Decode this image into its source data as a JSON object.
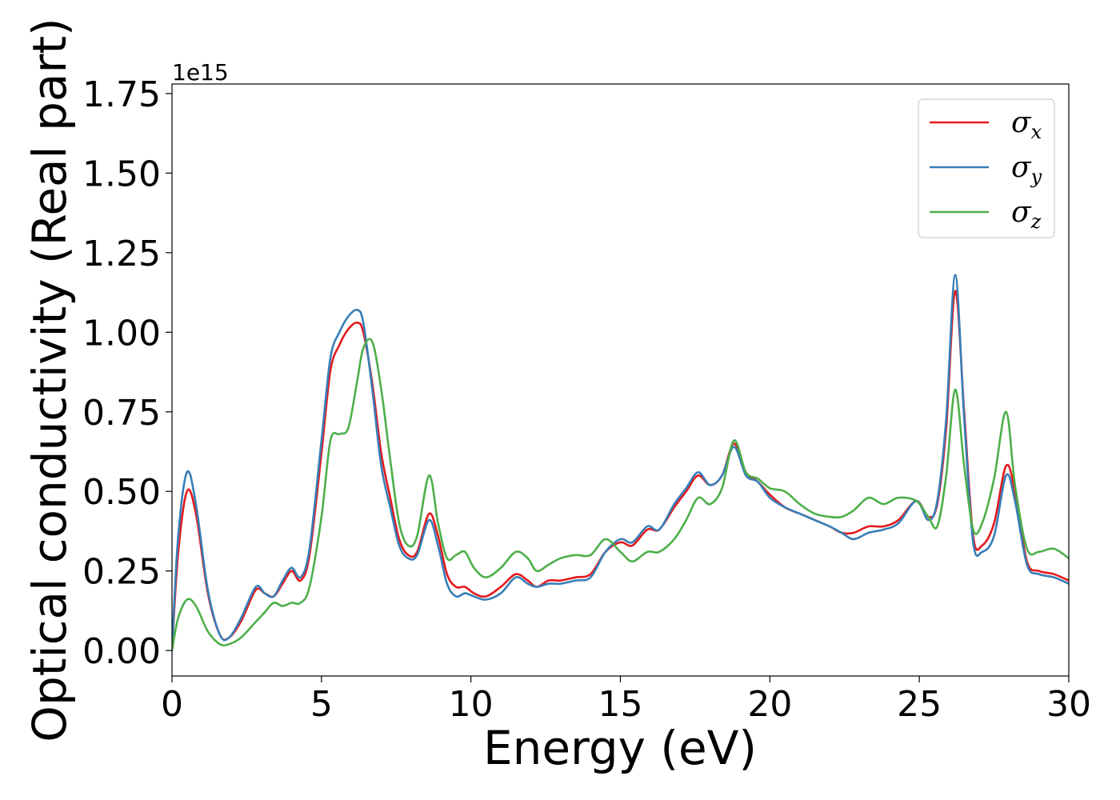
{
  "chart_data": {
    "type": "line",
    "xlabel": "Energy (eV)",
    "ylabel": "Optical conductivity (Real part)",
    "y_offset_label": "1e15",
    "xlim": [
      0,
      30
    ],
    "ylim": [
      -0.08,
      1.78
    ],
    "xticks": [
      0,
      5,
      10,
      15,
      20,
      25,
      30
    ],
    "xtick_labels": [
      "0",
      "5",
      "10",
      "15",
      "20",
      "25",
      "30"
    ],
    "yticks": [
      0,
      0.25,
      0.5,
      0.75,
      1.0,
      1.25,
      1.5,
      1.75
    ],
    "ytick_labels": [
      "0.00",
      "0.25",
      "0.50",
      "0.75",
      "1.00",
      "1.25",
      "1.50",
      "1.75"
    ],
    "grid": false,
    "legend_position": "top-right",
    "series": [
      {
        "name": "σx",
        "symbol": "σ",
        "subscript": "x",
        "color": "#e41a1c",
        "x": [
          0,
          0.2,
          0.5,
          0.8,
          1.2,
          1.6,
          1.9,
          2.3,
          2.8,
          3.1,
          3.4,
          3.7,
          4.0,
          4.3,
          4.6,
          5.0,
          5.3,
          5.6,
          5.9,
          6.2,
          6.4,
          6.7,
          7.0,
          7.3,
          7.6,
          7.9,
          8.2,
          8.6,
          8.9,
          9.2,
          9.5,
          9.8,
          10.1,
          10.5,
          11.0,
          11.5,
          11.9,
          12.2,
          12.6,
          13.0,
          13.5,
          14.0,
          14.5,
          15.0,
          15.4,
          15.9,
          16.3,
          16.8,
          17.2,
          17.6,
          18.0,
          18.4,
          18.8,
          19.2,
          19.6,
          20.0,
          20.5,
          21.0,
          21.5,
          22.0,
          22.4,
          22.8,
          23.3,
          23.8,
          24.3,
          24.9,
          25.3,
          25.6,
          25.9,
          26.2,
          26.5,
          26.8,
          27.1,
          27.5,
          27.9,
          28.2,
          28.6,
          29.0,
          29.5,
          30.0
        ],
        "values": [
          0.0,
          0.3,
          0.5,
          0.43,
          0.18,
          0.05,
          0.04,
          0.09,
          0.19,
          0.18,
          0.17,
          0.21,
          0.25,
          0.22,
          0.3,
          0.62,
          0.88,
          0.96,
          1.01,
          1.03,
          1.0,
          0.84,
          0.62,
          0.48,
          0.35,
          0.3,
          0.31,
          0.43,
          0.36,
          0.24,
          0.2,
          0.2,
          0.18,
          0.17,
          0.2,
          0.24,
          0.22,
          0.2,
          0.22,
          0.22,
          0.23,
          0.24,
          0.31,
          0.34,
          0.33,
          0.38,
          0.38,
          0.45,
          0.5,
          0.55,
          0.52,
          0.55,
          0.65,
          0.56,
          0.53,
          0.49,
          0.45,
          0.43,
          0.41,
          0.39,
          0.37,
          0.37,
          0.39,
          0.39,
          0.41,
          0.47,
          0.42,
          0.46,
          0.7,
          1.13,
          0.75,
          0.36,
          0.33,
          0.4,
          0.58,
          0.5,
          0.28,
          0.25,
          0.24,
          0.22
        ]
      },
      {
        "name": "σy",
        "symbol": "σ",
        "subscript": "y",
        "color": "#377eb8",
        "x": [
          0,
          0.2,
          0.5,
          0.8,
          1.2,
          1.6,
          1.9,
          2.3,
          2.8,
          3.1,
          3.4,
          3.7,
          4.0,
          4.3,
          4.6,
          5.0,
          5.3,
          5.6,
          5.9,
          6.2,
          6.4,
          6.7,
          7.0,
          7.3,
          7.6,
          7.9,
          8.2,
          8.6,
          8.9,
          9.2,
          9.5,
          9.8,
          10.1,
          10.5,
          11.0,
          11.5,
          11.9,
          12.2,
          12.6,
          13.0,
          13.5,
          14.0,
          14.5,
          15.0,
          15.4,
          15.9,
          16.3,
          16.8,
          17.2,
          17.6,
          18.0,
          18.4,
          18.8,
          19.2,
          19.6,
          20.0,
          20.5,
          21.0,
          21.5,
          22.0,
          22.4,
          22.8,
          23.3,
          23.8,
          24.3,
          24.9,
          25.3,
          25.6,
          25.9,
          26.2,
          26.5,
          26.8,
          27.1,
          27.5,
          27.9,
          28.2,
          28.6,
          29.0,
          29.5,
          30.0
        ],
        "values": [
          0.0,
          0.35,
          0.56,
          0.46,
          0.19,
          0.05,
          0.04,
          0.1,
          0.2,
          0.18,
          0.17,
          0.22,
          0.26,
          0.23,
          0.32,
          0.66,
          0.92,
          1.0,
          1.05,
          1.07,
          1.03,
          0.82,
          0.58,
          0.45,
          0.33,
          0.29,
          0.3,
          0.41,
          0.33,
          0.21,
          0.17,
          0.18,
          0.17,
          0.16,
          0.18,
          0.23,
          0.21,
          0.2,
          0.21,
          0.21,
          0.22,
          0.23,
          0.31,
          0.35,
          0.34,
          0.39,
          0.38,
          0.46,
          0.51,
          0.56,
          0.52,
          0.55,
          0.64,
          0.55,
          0.53,
          0.48,
          0.45,
          0.43,
          0.41,
          0.39,
          0.37,
          0.35,
          0.37,
          0.38,
          0.4,
          0.47,
          0.41,
          0.47,
          0.73,
          1.18,
          0.73,
          0.34,
          0.31,
          0.36,
          0.55,
          0.47,
          0.27,
          0.24,
          0.23,
          0.21
        ]
      },
      {
        "name": "σz",
        "symbol": "σ",
        "subscript": "z",
        "color": "#4daf4a",
        "x": [
          0,
          0.2,
          0.5,
          0.8,
          1.2,
          1.6,
          1.9,
          2.3,
          2.8,
          3.1,
          3.4,
          3.7,
          4.0,
          4.3,
          4.6,
          5.0,
          5.3,
          5.6,
          5.9,
          6.2,
          6.4,
          6.7,
          7.0,
          7.3,
          7.6,
          7.9,
          8.2,
          8.6,
          8.9,
          9.2,
          9.5,
          9.8,
          10.1,
          10.5,
          11.0,
          11.5,
          11.9,
          12.2,
          12.6,
          13.0,
          13.5,
          14.0,
          14.5,
          15.0,
          15.4,
          15.9,
          16.3,
          16.8,
          17.2,
          17.6,
          18.0,
          18.4,
          18.8,
          19.2,
          19.6,
          20.0,
          20.5,
          21.0,
          21.5,
          22.0,
          22.4,
          22.8,
          23.3,
          23.8,
          24.3,
          24.9,
          25.3,
          25.6,
          25.9,
          26.2,
          26.5,
          26.8,
          27.1,
          27.5,
          27.9,
          28.2,
          28.6,
          29.0,
          29.5,
          30.0
        ],
        "values": [
          0.0,
          0.1,
          0.16,
          0.14,
          0.06,
          0.02,
          0.02,
          0.04,
          0.09,
          0.12,
          0.15,
          0.14,
          0.15,
          0.15,
          0.2,
          0.42,
          0.66,
          0.68,
          0.7,
          0.85,
          0.95,
          0.97,
          0.82,
          0.6,
          0.4,
          0.33,
          0.36,
          0.55,
          0.4,
          0.29,
          0.3,
          0.31,
          0.26,
          0.23,
          0.26,
          0.31,
          0.29,
          0.25,
          0.27,
          0.29,
          0.3,
          0.3,
          0.35,
          0.31,
          0.28,
          0.31,
          0.31,
          0.35,
          0.41,
          0.48,
          0.46,
          0.51,
          0.66,
          0.56,
          0.54,
          0.51,
          0.5,
          0.46,
          0.43,
          0.42,
          0.42,
          0.44,
          0.48,
          0.46,
          0.48,
          0.47,
          0.42,
          0.39,
          0.55,
          0.82,
          0.58,
          0.38,
          0.4,
          0.54,
          0.75,
          0.52,
          0.32,
          0.31,
          0.32,
          0.29
        ]
      }
    ]
  }
}
